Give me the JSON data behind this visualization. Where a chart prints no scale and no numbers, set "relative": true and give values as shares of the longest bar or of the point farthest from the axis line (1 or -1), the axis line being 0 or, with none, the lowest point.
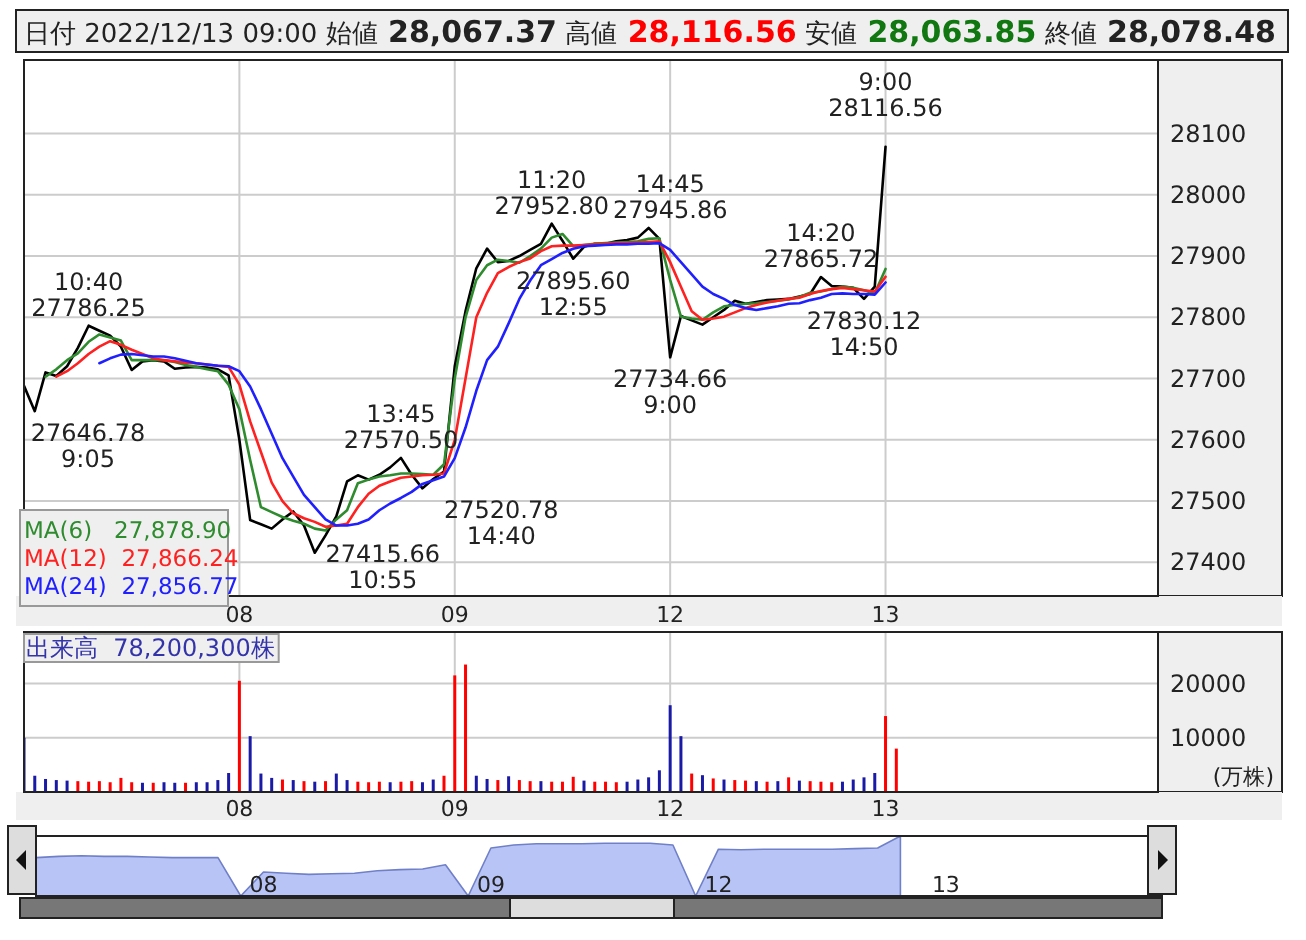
{
  "chart_data": [
    {
      "type": "line",
      "title": "日付 2022/12/13 09:00 始値 28,067.37 高値 28,116.56 安値 28,063.85 終値 28,078.48",
      "categories": [
        null,
        null,
        null,
        null,
        null,
        null,
        null,
        null,
        null,
        null,
        null,
        null,
        null,
        null,
        null,
        null,
        null,
        null,
        null,
        null,
        "08",
        null,
        null,
        null,
        null,
        null,
        null,
        null,
        null,
        null,
        null,
        null,
        null,
        null,
        null,
        null,
        null,
        null,
        null,
        null,
        "09",
        null,
        null,
        null,
        null,
        null,
        null,
        null,
        null,
        null,
        null,
        null,
        null,
        null,
        null,
        null,
        null,
        null,
        null,
        null,
        "12",
        null,
        null,
        null,
        null,
        null,
        null,
        null,
        null,
        null,
        null,
        null,
        null,
        null,
        null,
        null,
        null,
        null,
        null,
        null,
        "13",
        null,
        null,
        null,
        null,
        null,
        null,
        null,
        null,
        null,
        null,
        null,
        null,
        null,
        null,
        null,
        null,
        null,
        null,
        null,
        null,
        null,
        null,
        null,
        null,
        null
      ],
      "ylim": [
        27345,
        28220
      ],
      "yticks": [
        27400,
        27500,
        27600,
        27700,
        27800,
        27900,
        28000,
        28100
      ],
      "grid": true,
      "legend": "bottom left",
      "series": [
        {
          "color": "#000000",
          "values": [
            27688,
            27646.78,
            27710,
            27704,
            27720,
            27750,
            27786.25,
            27778,
            27770,
            27752,
            27714,
            27728,
            27730,
            27728,
            27716,
            27718,
            27719,
            27718,
            27715,
            27705,
            27600,
            27469,
            27462,
            27455,
            27470,
            27483,
            27460,
            27415.66,
            27444,
            27475,
            27532,
            27542,
            27535,
            27543,
            27555,
            27570.5,
            27543,
            27520.78,
            27536,
            27548,
            27720,
            27810,
            27880,
            27912,
            27890,
            27892,
            27900,
            27910,
            27920,
            27952.8,
            27925,
            27895.6,
            27915,
            27920,
            27920,
            27924,
            27926,
            27930,
            27945.86,
            27928,
            27734.66,
            27802,
            27795,
            27788,
            27800,
            27812,
            27827,
            27822,
            27825,
            27828,
            27829,
            27830,
            27834,
            27838,
            27865.72,
            27851,
            27850,
            27848,
            27830.12,
            27850,
            28078.48,
            null,
            null,
            null,
            null,
            null,
            null,
            null,
            null,
            null,
            null,
            null,
            null,
            null,
            null,
            null,
            null,
            null,
            null,
            null,
            null,
            null,
            null,
            null,
            null,
            null
          ]
        },
        {
          "name": "MA(6)   27,878.90",
          "color": "#2e8b2e",
          "values": [
            null,
            null,
            27703,
            27715,
            27730,
            27741,
            27760,
            27772,
            27767,
            27762,
            27730,
            27730,
            27730,
            27730,
            27727,
            27722,
            27719,
            27715,
            27712,
            27690,
            27650,
            27567,
            27490,
            27482,
            27474,
            27468,
            27463,
            27455,
            27452,
            27470,
            27485,
            27529,
            27535,
            27540,
            27542,
            27545,
            27545,
            27544,
            27543,
            27560,
            27700,
            27800,
            27861,
            27885,
            27894,
            27892,
            27889,
            27900,
            27912,
            27930,
            27936,
            27916,
            27918,
            27920,
            27921,
            27922,
            27923,
            27924,
            27928,
            27929,
            27861,
            27801,
            27798,
            27796,
            27808,
            27818,
            27820,
            27822,
            27823,
            27825,
            27827,
            27829,
            27833,
            27840,
            27842,
            27846,
            27850,
            27848,
            27844,
            27839,
            27878.9,
            null,
            null,
            null,
            null,
            null,
            null,
            null,
            null,
            null,
            null,
            null,
            null,
            null,
            null,
            null,
            null,
            null,
            null,
            null,
            null,
            null,
            null,
            null,
            null,
            null
          ]
        },
        {
          "name": "MA(12)  27,866.24",
          "color": "#ff2020",
          "values": [
            null,
            null,
            null,
            27703,
            27712,
            27725,
            27740,
            27752,
            27761,
            27755,
            27747,
            27740,
            27733,
            27730,
            27728,
            27726,
            27725,
            27723,
            27721,
            27719,
            27690,
            27630,
            27580,
            27530,
            27500,
            27480,
            27472,
            27466,
            27458,
            27460,
            27463,
            27490,
            27512,
            27525,
            27532,
            27538,
            27540,
            27542,
            27543,
            27545,
            27600,
            27700,
            27800,
            27840,
            27872,
            27882,
            27890,
            27896,
            27908,
            27916,
            27917,
            27917,
            27918,
            27919,
            27920,
            27921,
            27921,
            27922,
            27923,
            27924,
            27890,
            27850,
            27810,
            27796,
            27798,
            27801,
            27808,
            27815,
            27820,
            27824,
            27827,
            27830,
            27832,
            27838,
            27843,
            27846,
            27848,
            27846,
            27844,
            27842,
            27866.24,
            null,
            null,
            null,
            null,
            null,
            null,
            null,
            null,
            null,
            null,
            null,
            null,
            null,
            null,
            null,
            null,
            null,
            null,
            null,
            null,
            null,
            null,
            null,
            null,
            null
          ]
        },
        {
          "name": "MA(24)  27,856.77",
          "color": "#2020ff",
          "values": [
            null,
            null,
            null,
            null,
            null,
            null,
            null,
            27725,
            27733,
            27739,
            27740,
            27738,
            27736,
            27736,
            27733,
            27729,
            27725,
            27723,
            27721,
            27720,
            27712,
            27687,
            27650,
            27610,
            27570,
            27540,
            27510,
            27490,
            27470,
            27460,
            27460,
            27463,
            27470,
            27485,
            27496,
            27505,
            27515,
            27528,
            27534,
            27540,
            27570,
            27620,
            27680,
            27730,
            27752,
            27790,
            27830,
            27860,
            27885,
            27895,
            27905,
            27912,
            27916,
            27917,
            27918,
            27919,
            27919,
            27920,
            27920,
            27921,
            27910,
            27890,
            27870,
            27850,
            27838,
            27830,
            27820,
            27815,
            27812,
            27815,
            27818,
            27822,
            27823,
            27828,
            27832,
            27838,
            27839,
            27838,
            27838,
            27837,
            27856.77,
            null,
            null,
            null,
            null,
            null,
            null,
            null,
            null,
            null,
            null,
            null,
            null,
            null,
            null,
            null,
            null,
            null,
            null,
            null,
            null,
            null,
            null,
            null,
            null,
            null
          ]
        }
      ],
      "annotations": [
        "27646.78\n9:05",
        "10:40\n27786.25",
        "27415.66\n10:55",
        "13:45\n27570.50",
        "27520.78\n14:40",
        "11:20\n27952.80",
        "27895.60\n12:55",
        "14:45\n27945.86",
        "27734.66\n9:00",
        "14:20\n27865.72",
        "27830.12\n14:50",
        "9:00\n28116.56"
      ]
    },
    {
      "type": "bar",
      "title": "出来高  78,200,300株",
      "ylabel": "(万株)",
      "categories": [
        null,
        null,
        null,
        null,
        null,
        null,
        null,
        null,
        null,
        null,
        null,
        null,
        null,
        null,
        null,
        null,
        null,
        null,
        null,
        null,
        "08",
        null,
        null,
        null,
        null,
        null,
        null,
        null,
        null,
        null,
        null,
        null,
        null,
        null,
        null,
        null,
        null,
        null,
        null,
        null,
        "09",
        null,
        null,
        null,
        null,
        null,
        null,
        null,
        null,
        null,
        null,
        null,
        null,
        null,
        null,
        null,
        null,
        null,
        null,
        null,
        "12",
        null,
        null,
        null,
        null,
        null,
        null,
        null,
        null,
        null,
        null,
        null,
        null,
        null,
        null,
        null,
        null,
        null,
        null,
        null,
        "13",
        null,
        null,
        null,
        null,
        null,
        null,
        null,
        null,
        null,
        null,
        null,
        null,
        null,
        null,
        null,
        null,
        null,
        null,
        null,
        null,
        null,
        null,
        null,
        null,
        null
      ],
      "ylim": [
        0,
        29500
      ],
      "yticks": [
        10000,
        20000
      ],
      "grid": true,
      "values": [
        10000,
        3000,
        2400,
        2200,
        2100,
        2000,
        1900,
        2000,
        1800,
        2600,
        1800,
        1700,
        1700,
        1800,
        1700,
        1700,
        1800,
        1800,
        2200,
        3500,
        20500,
        10300,
        3400,
        2600,
        2300,
        2200,
        2000,
        1900,
        2000,
        3400,
        2200,
        1900,
        1800,
        1900,
        1800,
        1900,
        2000,
        1800,
        2300,
        3000,
        21500,
        23500,
        3000,
        2400,
        2200,
        2900,
        2200,
        2000,
        2000,
        1900,
        1900,
        2800,
        2100,
        1900,
        1900,
        1800,
        1900,
        2300,
        2700,
        4000,
        16000,
        10300,
        3400,
        3100,
        2500,
        2300,
        2200,
        2100,
        2000,
        1900,
        2000,
        2700,
        2100,
        2000,
        1900,
        1800,
        1900,
        2300,
        2700,
        3500,
        14000,
        8000,
        null,
        null,
        null,
        null,
        null,
        null,
        null,
        null,
        null,
        null,
        null,
        null,
        null,
        null,
        null,
        null,
        null,
        null,
        null,
        null,
        null,
        null,
        null,
        null
      ],
      "colors": [
        "#1a1aa6",
        "#1a1aa6",
        "#1a1aa6",
        "#1a1aa6",
        "#1a1aa6",
        "#ff0000",
        "#ff0000",
        "#ff0000",
        "#ff0000",
        "#ff0000",
        "#ff0000",
        "#1a1aa6",
        "#ff0000",
        "#1a1aa6",
        "#1a1aa6",
        "#ff0000",
        "#1a1aa6",
        "#1a1aa6",
        "#1a1aa6",
        "#1a1aa6",
        "#ff0000",
        "#1a1aa6",
        "#1a1aa6",
        "#1a1aa6",
        "#ff0000",
        "#1a1aa6",
        "#ff0000",
        "#1a1aa6",
        "#ff0000",
        "#1a1aa6",
        "#1a1aa6",
        "#ff0000",
        "#ff0000",
        "#ff0000",
        "#1a1aa6",
        "#ff0000",
        "#ff0000",
        "#1a1aa6",
        "#1a1aa6",
        "#ff0000",
        "#ff0000",
        "#ff0000",
        "#1a1aa6",
        "#1a1aa6",
        "#ff0000",
        "#1a1aa6",
        "#ff0000",
        "#ff0000",
        "#1a1aa6",
        "#ff0000",
        "#ff0000",
        "#ff0000",
        "#1a1aa6",
        "#ff0000",
        "#ff0000",
        "#ff0000",
        "#1a1aa6",
        "#1a1aa6",
        "#1a1aa6",
        "#1a1aa6",
        "#1a1aa6",
        "#1a1aa6",
        "#ff0000",
        "#1a1aa6",
        "#ff0000",
        "#1a1aa6",
        "#ff0000",
        "#ff0000",
        "#1a1aa6",
        "#ff0000",
        "#1a1aa6",
        "#ff0000",
        "#1a1aa6",
        "#ff0000",
        "#ff0000",
        "#ff0000",
        "#1a1aa6",
        "#1a1aa6",
        "#1a1aa6",
        "#1a1aa6",
        "#ff0000",
        "#ff0000",
        null,
        null,
        null,
        null,
        null,
        null,
        null,
        null,
        null,
        null,
        null,
        null,
        null,
        null,
        null,
        null,
        null,
        null,
        null,
        null,
        null,
        null,
        null,
        null
      ]
    },
    {
      "type": "area",
      "relative": true,
      "color": "#b8c4f5",
      "categories": [
        null,
        null,
        null,
        null,
        null,
        null,
        null,
        null,
        null,
        null,
        "08",
        null,
        null,
        null,
        null,
        null,
        null,
        null,
        null,
        null,
        "09",
        null,
        null,
        null,
        null,
        null,
        null,
        null,
        null,
        null,
        "12",
        null,
        null,
        null,
        null,
        null,
        null,
        null,
        null,
        null,
        "13",
        null,
        null,
        null,
        null,
        null,
        null,
        null,
        null,
        null
      ],
      "values": [
        0.64,
        0.66,
        0.67,
        0.66,
        0.66,
        0.65,
        0.64,
        0.64,
        0.64,
        0,
        0.4,
        0.38,
        0.36,
        0.37,
        0.38,
        0.42,
        0.44,
        0.45,
        0.52,
        0,
        0.8,
        0.85,
        0.87,
        0.87,
        0.87,
        0.88,
        0.88,
        0.88,
        0.85,
        0,
        0.78,
        0.77,
        0.78,
        0.78,
        0.78,
        0.78,
        0.79,
        0.8,
        1.0,
        null,
        null,
        null,
        null,
        null,
        null,
        null,
        null,
        null,
        null,
        null
      ]
    }
  ]
}
